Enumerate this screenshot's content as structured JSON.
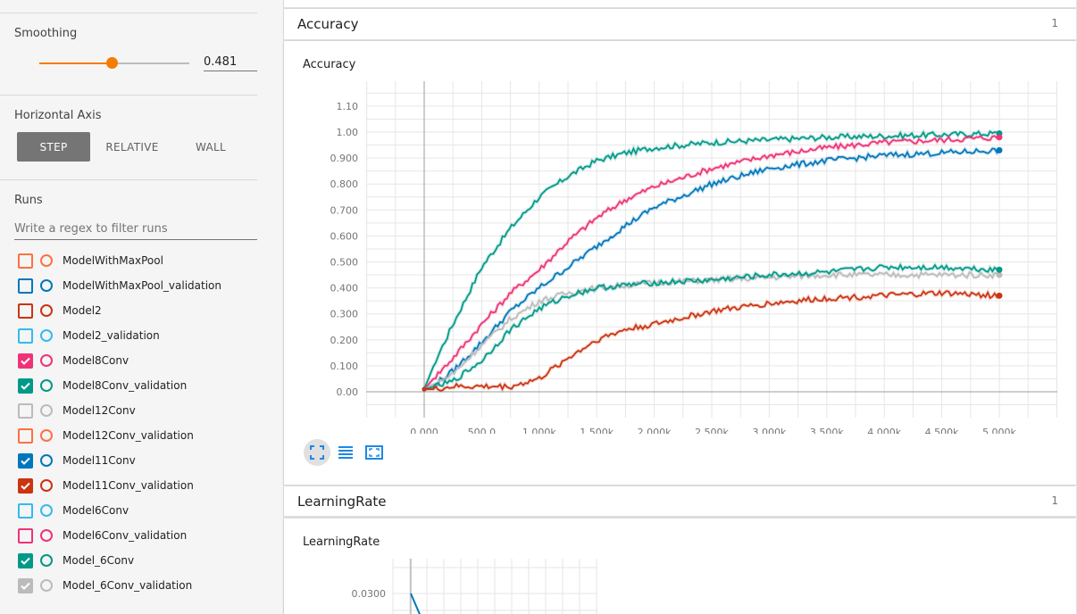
{
  "sidebar": {
    "smoothing": {
      "title": "Smoothing",
      "value": 0.481,
      "value_text": "0.481"
    },
    "horizontal_axis": {
      "title": "Horizontal Axis",
      "options": [
        "STEP",
        "RELATIVE",
        "WALL"
      ],
      "selected": "STEP"
    },
    "runs": {
      "title": "Runs",
      "filter_placeholder": "Write a regex to filter runs",
      "items": [
        {
          "name": "ModelWithMaxPool",
          "color": "#ff7043",
          "checked": false
        },
        {
          "name": "ModelWithMaxPool_validation",
          "color": "#0077bb",
          "checked": false
        },
        {
          "name": "Model2",
          "color": "#cc3311",
          "checked": false
        },
        {
          "name": "Model2_validation",
          "color": "#33bbee",
          "checked": false
        },
        {
          "name": "Model8Conv",
          "color": "#ee3377",
          "checked": true
        },
        {
          "name": "Model8Conv_validation",
          "color": "#009988",
          "checked": true
        },
        {
          "name": "Model12Conv",
          "color": "#bbbbbb",
          "checked": false
        },
        {
          "name": "Model12Conv_validation",
          "color": "#ff7043",
          "checked": false
        },
        {
          "name": "Model11Conv",
          "color": "#0077bb",
          "checked": true
        },
        {
          "name": "Model11Conv_validation",
          "color": "#cc3311",
          "checked": true
        },
        {
          "name": "Model6Conv",
          "color": "#33bbee",
          "checked": false
        },
        {
          "name": "Model6Conv_validation",
          "color": "#ee3377",
          "checked": false
        },
        {
          "name": "Model_6Conv",
          "color": "#009988",
          "checked": true
        },
        {
          "name": "Model_6Conv_validation",
          "color": "#bbbbbb",
          "checked": true
        }
      ]
    }
  },
  "main": {
    "accuracy_card": {
      "title": "Accuracy",
      "count": "1",
      "chart_title": "Accuracy"
    },
    "lr_card": {
      "title": "LearningRate",
      "count": "1",
      "chart_title": "LearningRate"
    }
  },
  "chart_data": [
    {
      "type": "line",
      "title": "Accuracy",
      "xlim": [
        0,
        5000
      ],
      "ylim": [
        0,
        1.15
      ],
      "grid": true,
      "x_ticks": [
        "0.000",
        "500.0",
        "1.000k",
        "1.500k",
        "2.000k",
        "2.500k",
        "3.000k",
        "3.500k",
        "4.000k",
        "4.500k",
        "5.000k"
      ],
      "y_ticks": [
        "0.00",
        "0.100",
        "0.200",
        "0.300",
        "0.400",
        "0.500",
        "0.600",
        "0.700",
        "0.800",
        "0.900",
        "1.00",
        "1.10"
      ],
      "x": [
        0,
        100,
        250,
        500,
        750,
        1000,
        1250,
        1500,
        1750,
        2000,
        2500,
        3000,
        3500,
        4000,
        4500,
        5000
      ],
      "series": [
        {
          "name": "Model_6Conv",
          "color": "#009988",
          "values": [
            0.01,
            0.12,
            0.26,
            0.48,
            0.63,
            0.75,
            0.83,
            0.89,
            0.92,
            0.94,
            0.96,
            0.97,
            0.98,
            0.985,
            0.99,
            0.995
          ]
        },
        {
          "name": "Model8Conv",
          "color": "#ee3377",
          "values": [
            0.01,
            0.06,
            0.13,
            0.26,
            0.38,
            0.47,
            0.58,
            0.67,
            0.74,
            0.79,
            0.86,
            0.91,
            0.94,
            0.96,
            0.97,
            0.98
          ]
        },
        {
          "name": "Model11Conv",
          "color": "#0077bb",
          "values": [
            0.01,
            0.03,
            0.08,
            0.19,
            0.31,
            0.4,
            0.48,
            0.56,
            0.64,
            0.71,
            0.8,
            0.86,
            0.89,
            0.91,
            0.92,
            0.93
          ]
        },
        {
          "name": "Model_6Conv_validation",
          "color": "#bbbbbb",
          "values": [
            0.01,
            0.03,
            0.07,
            0.18,
            0.28,
            0.35,
            0.38,
            0.4,
            0.41,
            0.42,
            0.43,
            0.44,
            0.45,
            0.45,
            0.45,
            0.45
          ]
        },
        {
          "name": "Model8Conv_validation",
          "color": "#009988",
          "values": [
            0.01,
            0.02,
            0.04,
            0.12,
            0.24,
            0.32,
            0.37,
            0.4,
            0.41,
            0.42,
            0.43,
            0.45,
            0.46,
            0.48,
            0.48,
            0.47
          ]
        },
        {
          "name": "Model11Conv_validation",
          "color": "#cc3311",
          "values": [
            0.01,
            0.01,
            0.02,
            0.02,
            0.02,
            0.05,
            0.13,
            0.2,
            0.24,
            0.26,
            0.31,
            0.34,
            0.36,
            0.37,
            0.38,
            0.37
          ]
        }
      ]
    },
    {
      "type": "line",
      "title": "LearningRate",
      "y_ticks": [
        "0.0300"
      ],
      "series": [
        {
          "name": "LearningRate",
          "color": "#0077bb",
          "x": [
            0,
            100
          ],
          "values": [
            0.03,
            0.026
          ]
        }
      ]
    }
  ]
}
